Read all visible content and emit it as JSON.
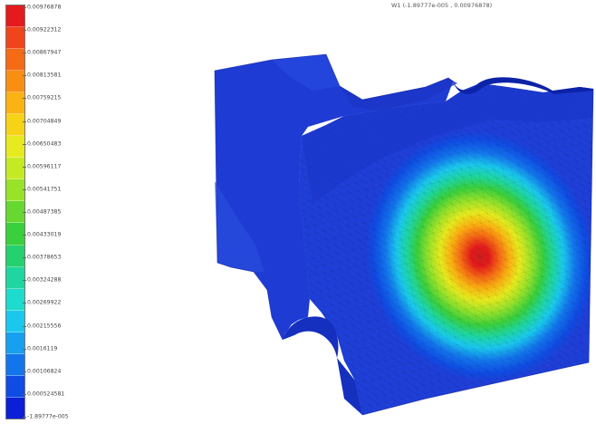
{
  "legend": {
    "title": "W1 (-1.89777e-005 , 0.00976878)",
    "levels": [
      {
        "label": "0.00976878",
        "color": "#e41a1c"
      },
      {
        "label": "0.00922312",
        "color": "#f0441a"
      },
      {
        "label": "0.00867947",
        "color": "#f56a14"
      },
      {
        "label": "0.00813581",
        "color": "#f88f12"
      },
      {
        "label": "0.00759215",
        "color": "#fab312"
      },
      {
        "label": "0.00704849",
        "color": "#f6d316"
      },
      {
        "label": "0.00650483",
        "color": "#e7ea1e"
      },
      {
        "label": "0.00596117",
        "color": "#c4ea24"
      },
      {
        "label": "0.00541751",
        "color": "#98e22a"
      },
      {
        "label": "0.00487385",
        "color": "#67d82f"
      },
      {
        "label": "0.00433019",
        "color": "#39cf3d"
      },
      {
        "label": "0.00378653",
        "color": "#25d06e"
      },
      {
        "label": "0.00324288",
        "color": "#1fd6a0"
      },
      {
        "label": "0.00269922",
        "color": "#1ddbcd"
      },
      {
        "label": "0.00215556",
        "color": "#1ac8ee"
      },
      {
        "label": "0.0016119",
        "color": "#179ff0"
      },
      {
        "label": "0.00106824",
        "color": "#1375ec"
      },
      {
        "label": "0.000524581",
        "color": "#0f4ce3"
      },
      {
        "label": "-1.89777e-005",
        "color": "#0a1fd6"
      }
    ]
  },
  "colors": {
    "background": "#ffffff",
    "surface_low": "#1f3fd8",
    "surface_shadow": "#1836c4",
    "surface_edge": "#0c23a8"
  }
}
